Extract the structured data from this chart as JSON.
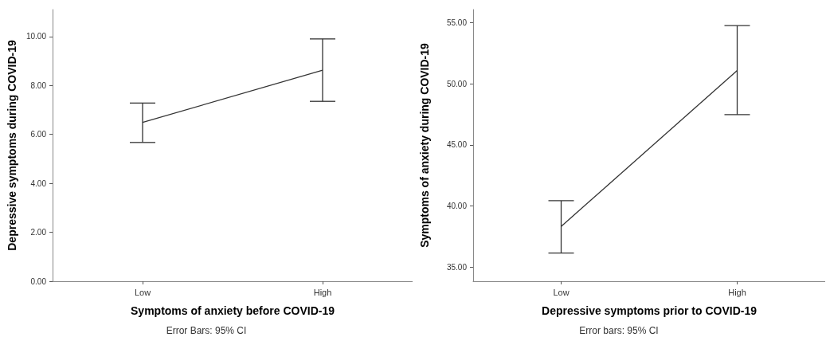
{
  "chart_data": [
    {
      "type": "line",
      "xlabel": "Symptoms of anxiety before COVID-19",
      "ylabel": "Depressive symptoms during COVID-19",
      "categories": [
        "Low",
        "High"
      ],
      "ylim": [
        0,
        11.1
      ],
      "yticks": [
        {
          "value": 0,
          "label": "0.00"
        },
        {
          "value": 2,
          "label": "2.00"
        },
        {
          "value": 4,
          "label": "4.00"
        },
        {
          "value": 6,
          "label": "6.00"
        },
        {
          "value": 8,
          "label": "8.00"
        },
        {
          "value": 10,
          "label": "10.00"
        }
      ],
      "series": [
        {
          "color": "#333333",
          "values": [
            6.49,
            8.62
          ],
          "errors": [
            [
              5.67,
              7.28
            ],
            [
              7.35,
              9.9
            ]
          ]
        }
      ],
      "marker": "none",
      "grid": false,
      "annotations": [
        "Error Bars: 95% CI"
      ]
    },
    {
      "type": "line",
      "xlabel": "Depressive symptoms prior to COVID-19",
      "ylabel": "Symptoms of anxiety during COVID-19",
      "categories": [
        "Low",
        "High"
      ],
      "ylim": [
        33.86,
        56.07
      ],
      "yticks": [
        {
          "value": 35,
          "label": "35.00"
        },
        {
          "value": 40,
          "label": "40.00"
        },
        {
          "value": 45,
          "label": "45.00"
        },
        {
          "value": 50,
          "label": "50.00"
        },
        {
          "value": 55,
          "label": "55.00"
        }
      ],
      "series": [
        {
          "color": "#333333",
          "values": [
            38.34,
            51.09
          ],
          "errors": [
            [
              36.17,
              40.44
            ],
            [
              47.48,
              54.76
            ]
          ]
        }
      ],
      "marker": "none",
      "grid": false,
      "annotations": [
        "Error bars: 95% CI"
      ]
    }
  ]
}
